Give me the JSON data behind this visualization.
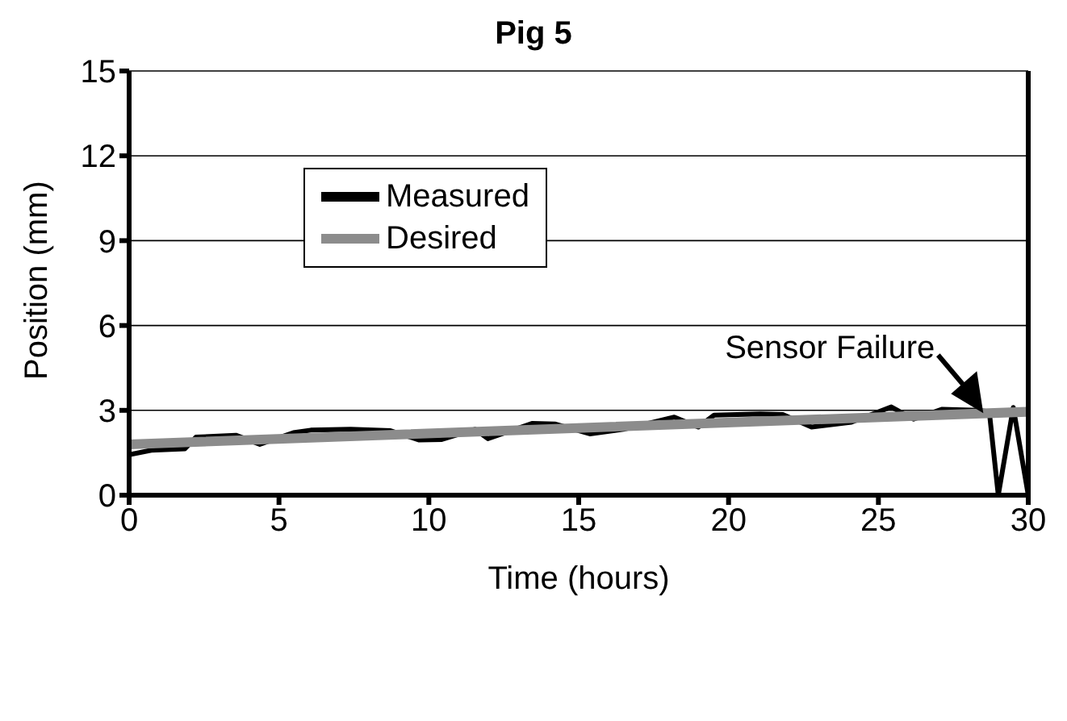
{
  "chart_data": {
    "type": "line",
    "title": "Pig 5",
    "xlabel": "Time (hours)",
    "ylabel": "Position (mm)",
    "xlim": [
      0,
      30
    ],
    "xticks": [
      0,
      5,
      10,
      15,
      20,
      25,
      30
    ],
    "ylim": [
      0,
      15
    ],
    "yticks": [
      0,
      3,
      6,
      9,
      12,
      15
    ],
    "grid": "y",
    "legend": "top left",
    "marker": "none",
    "line_style": "solid",
    "annotations": [
      {
        "text": "Sensor Failure",
        "x": 28.5,
        "y": 2.9
      }
    ],
    "series": [
      {
        "name": "Measured",
        "color": "#000000",
        "x": [
          0,
          0.74,
          1.86,
          2.23,
          3.56,
          4.36,
          5.48,
          6.06,
          7.39,
          8.72,
          9.68,
          10.43,
          11.54,
          11.97,
          13.46,
          14.2,
          15.37,
          16.49,
          18.19,
          18.99,
          19.52,
          21.06,
          21.81,
          22.77,
          24.1,
          25.43,
          26.17,
          27.13,
          28.3,
          28.7,
          29.0,
          29.5,
          30
        ],
        "values": [
          1.43,
          1.59,
          1.64,
          2.05,
          2.12,
          1.8,
          2.21,
          2.3,
          2.33,
          2.28,
          1.95,
          1.97,
          2.33,
          2.0,
          2.54,
          2.52,
          2.17,
          2.33,
          2.76,
          2.41,
          2.83,
          2.87,
          2.85,
          2.41,
          2.58,
          3.12,
          2.69,
          3.04,
          3.0,
          2.95,
          0,
          3.1,
          0
        ]
      },
      {
        "name": "Desired",
        "color": "#8c8c8c",
        "x": [
          0,
          30
        ],
        "values": [
          1.8,
          2.95
        ]
      }
    ]
  }
}
